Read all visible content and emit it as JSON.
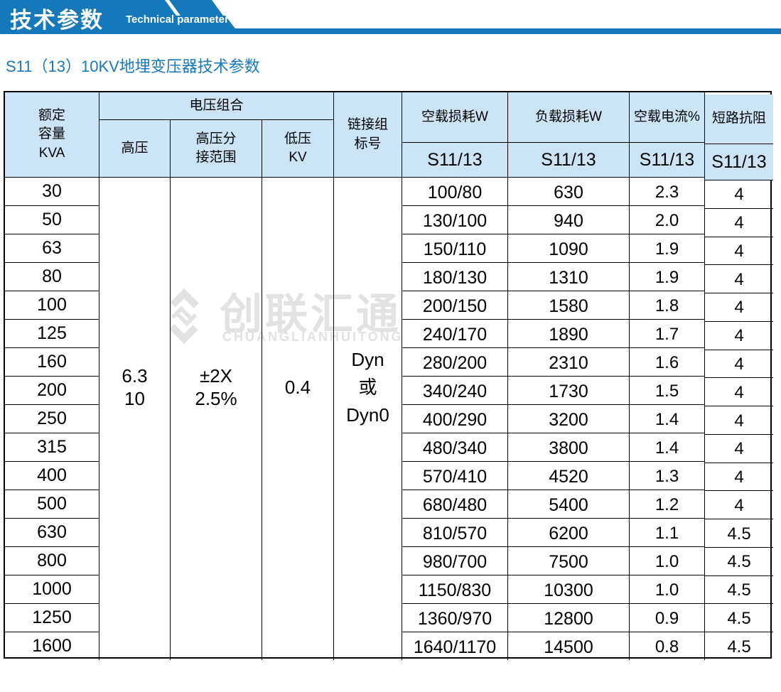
{
  "banner": {
    "title_cn": "技术参数",
    "title_en": "Technical parameter"
  },
  "subtitle": "S11（13）10KV地埋变压器技术参数",
  "colors": {
    "banner_blue": "#1478ba",
    "header_bg": "#cbe5f6",
    "subtitle_blue": "#1878be",
    "watermark_gray": "#e2e2e2",
    "border": "#000000"
  },
  "watermark": {
    "cn": "创联汇通",
    "en": "CHUANGLIANHUITONG"
  },
  "table": {
    "header": {
      "rated_capacity": "额定\n容量\nKVA",
      "voltage_combo": "电压组合",
      "hv": "高压",
      "hv_tap": "高压分\n接范围",
      "lv": "低压\nKV",
      "connection": "链接组\n标号",
      "no_load_loss": "空载损耗W",
      "load_loss": "负载损耗W",
      "no_load_current": "空载电流%",
      "short_impedance": "短路抗阻",
      "s11_13": "S11/13"
    },
    "merged": {
      "hv_value": "6.3\n10",
      "tap_value": "±2X\n2.5%",
      "lv_value": "0.4",
      "connection_value": "Dyn\n或\nDyn0"
    },
    "columns": {
      "capacity": [
        "30",
        "50",
        "63",
        "80",
        "100",
        "125",
        "160",
        "200",
        "250",
        "315",
        "400",
        "500",
        "630",
        "800",
        "1000",
        "1250",
        "1600"
      ],
      "no_load_loss": [
        "100/80",
        "130/100",
        "150/110",
        "180/130",
        "200/150",
        "240/170",
        "280/200",
        "340/240",
        "400/290",
        "480/340",
        "570/410",
        "680/480",
        "810/570",
        "980/700",
        "1150/830",
        "1360/970",
        "1640/1170"
      ],
      "load_loss": [
        "630",
        "940",
        "1090",
        "1310",
        "1580",
        "1890",
        "2310",
        "1730",
        "3200",
        "3800",
        "4520",
        "5400",
        "6200",
        "7500",
        "10300",
        "12800",
        "14500"
      ],
      "no_load_current": [
        "2.3",
        "2.0",
        "1.9",
        "1.9",
        "1.8",
        "1.7",
        "1.6",
        "1.5",
        "1.4",
        "1.4",
        "1.3",
        "1.2",
        "1.1",
        "1.0",
        "1.0",
        "0.9",
        "0.8"
      ],
      "short_impedance": [
        "4",
        "4",
        "4",
        "4",
        "4",
        "4",
        "4",
        "4",
        "4",
        "4",
        "4",
        "4",
        "4.5",
        "4.5",
        "4.5",
        "4.5",
        "4.5"
      ]
    }
  }
}
